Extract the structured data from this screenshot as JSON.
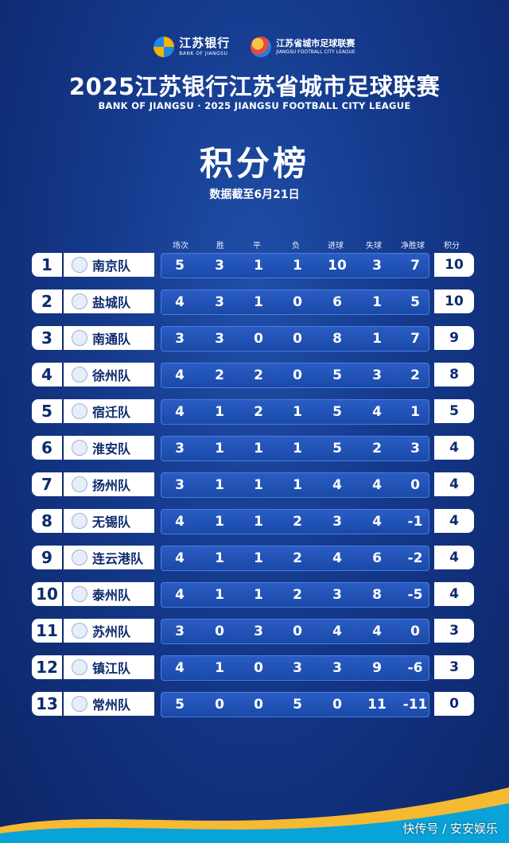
{
  "header": {
    "bank_cn": "江苏银行",
    "bank_en": "BANK OF JIANGSU",
    "league_cn": "江苏省城市足球联赛",
    "league_en": "JIANGSU FOOTBALL CITY LEAGUE",
    "title": "2025江苏银行江苏省城市足球联赛",
    "subtitle": "BANK OF JIANGSU · 2025 JIANGSU FOOTBALL CITY LEAGUE",
    "heading": "积分榜",
    "date": "数据截至6月21日"
  },
  "columns": [
    "场次",
    "胜",
    "平",
    "负",
    "进球",
    "失球",
    "净胜球",
    "积分"
  ],
  "rows": [
    {
      "rank": "1",
      "team": "南京队",
      "played": "5",
      "won": "3",
      "drawn": "1",
      "lost": "1",
      "gf": "10",
      "ga": "3",
      "gd": "7",
      "pts": "10"
    },
    {
      "rank": "2",
      "team": "盐城队",
      "played": "4",
      "won": "3",
      "drawn": "1",
      "lost": "0",
      "gf": "6",
      "ga": "1",
      "gd": "5",
      "pts": "10"
    },
    {
      "rank": "3",
      "team": "南通队",
      "played": "3",
      "won": "3",
      "drawn": "0",
      "lost": "0",
      "gf": "8",
      "ga": "1",
      "gd": "7",
      "pts": "9"
    },
    {
      "rank": "4",
      "team": "徐州队",
      "played": "4",
      "won": "2",
      "drawn": "2",
      "lost": "0",
      "gf": "5",
      "ga": "3",
      "gd": "2",
      "pts": "8"
    },
    {
      "rank": "5",
      "team": "宿迁队",
      "played": "4",
      "won": "1",
      "drawn": "2",
      "lost": "1",
      "gf": "5",
      "ga": "4",
      "gd": "1",
      "pts": "5"
    },
    {
      "rank": "6",
      "team": "淮安队",
      "played": "3",
      "won": "1",
      "drawn": "1",
      "lost": "1",
      "gf": "5",
      "ga": "2",
      "gd": "3",
      "pts": "4"
    },
    {
      "rank": "7",
      "team": "扬州队",
      "played": "3",
      "won": "1",
      "drawn": "1",
      "lost": "1",
      "gf": "4",
      "ga": "4",
      "gd": "0",
      "pts": "4"
    },
    {
      "rank": "8",
      "team": "无锡队",
      "played": "4",
      "won": "1",
      "drawn": "1",
      "lost": "2",
      "gf": "3",
      "ga": "4",
      "gd": "-1",
      "pts": "4"
    },
    {
      "rank": "9",
      "team": "连云港队",
      "played": "4",
      "won": "1",
      "drawn": "1",
      "lost": "2",
      "gf": "4",
      "ga": "6",
      "gd": "-2",
      "pts": "4"
    },
    {
      "rank": "10",
      "team": "泰州队",
      "played": "4",
      "won": "1",
      "drawn": "1",
      "lost": "2",
      "gf": "3",
      "ga": "8",
      "gd": "-5",
      "pts": "4"
    },
    {
      "rank": "11",
      "team": "苏州队",
      "played": "3",
      "won": "0",
      "drawn": "3",
      "lost": "0",
      "gf": "4",
      "ga": "4",
      "gd": "0",
      "pts": "3"
    },
    {
      "rank": "12",
      "team": "镇江队",
      "played": "4",
      "won": "1",
      "drawn": "0",
      "lost": "3",
      "gf": "3",
      "ga": "9",
      "gd": "-6",
      "pts": "3"
    },
    {
      "rank": "13",
      "team": "常州队",
      "played": "5",
      "won": "0",
      "drawn": "0",
      "lost": "5",
      "gf": "0",
      "ga": "11",
      "gd": "-11",
      "pts": "0"
    }
  ],
  "watermark": "快传号 / 安安娱乐",
  "colors": {
    "background": "#14388a",
    "stats_bar": "#1a4aa8",
    "accent": "#ffffff",
    "rank_text": "#0d2a6e"
  }
}
